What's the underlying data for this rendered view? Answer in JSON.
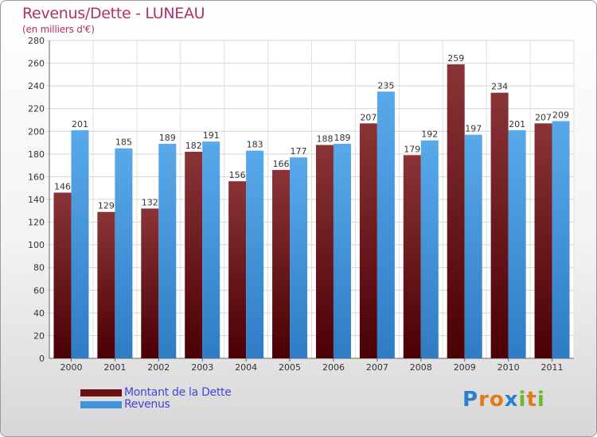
{
  "header": {
    "title": "Revenus/Dette - LUNEAU",
    "subtitle": "(en milliers d'€)"
  },
  "chart_data": {
    "type": "bar",
    "title": "Revenus/Dette - LUNEAU",
    "subtitle": "(en milliers d'€)",
    "categories": [
      "2000",
      "2001",
      "2002",
      "2003",
      "2004",
      "2005",
      "2006",
      "2007",
      "2008",
      "2009",
      "2010",
      "2011"
    ],
    "series": [
      {
        "name": "Montant de la Dette",
        "values": [
          146,
          129,
          132,
          182,
          156,
          166,
          188,
          207,
          179,
          259,
          234,
          207
        ],
        "color": "#6b0f14"
      },
      {
        "name": "Revenus",
        "values": [
          201,
          185,
          189,
          191,
          183,
          177,
          189,
          235,
          192,
          197,
          201,
          209
        ],
        "color": "#3f93dd"
      }
    ],
    "ylim": [
      0,
      280
    ],
    "yticks": [
      0,
      20,
      40,
      60,
      80,
      100,
      120,
      140,
      160,
      180,
      200,
      220,
      240,
      260,
      280
    ],
    "grid": true,
    "legend_position": "bottom-left"
  },
  "legend": {
    "items": [
      {
        "label": "Montant de la Dette",
        "color": "#6b0f14"
      },
      {
        "label": "Revenus",
        "color": "#3f93dd"
      }
    ]
  },
  "logo": {
    "letters": [
      "P",
      "r",
      "o",
      "x",
      "i",
      "t",
      "i"
    ],
    "colors": [
      "#2a7fd0",
      "#e07a1a",
      "#e07a1a",
      "#2a7fd0",
      "#6ab92e",
      "#e07a1a",
      "#6ab92e"
    ]
  }
}
